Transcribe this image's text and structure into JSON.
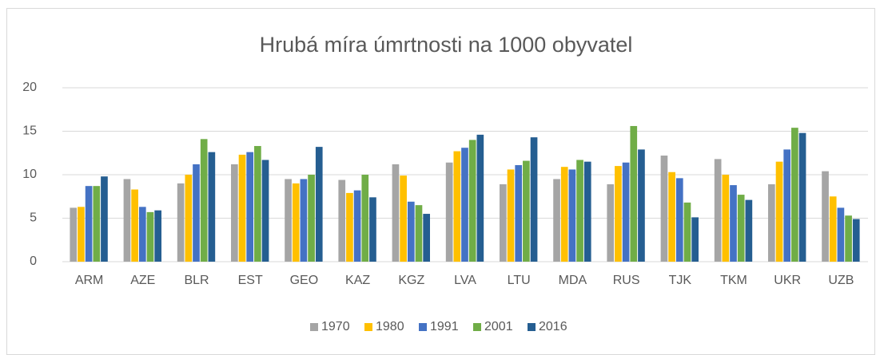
{
  "chart_data": {
    "type": "bar",
    "title": "Hrubá míra úmrtnosti na 1000 obyvatel",
    "categories": [
      "ARM",
      "AZE",
      "BLR",
      "EST",
      "GEO",
      "KAZ",
      "KGZ",
      "LVA",
      "LTU",
      "MDA",
      "RUS",
      "TJK",
      "TKM",
      "UKR",
      "UZB"
    ],
    "series": [
      {
        "name": "1970",
        "color": "#a5a5a5",
        "values": [
          6.2,
          9.5,
          9.0,
          11.2,
          9.5,
          9.4,
          11.2,
          11.4,
          8.9,
          9.5,
          8.9,
          12.2,
          11.8,
          8.9,
          10.4
        ]
      },
      {
        "name": "1980",
        "color": "#ffc000",
        "values": [
          6.3,
          8.3,
          10.0,
          12.3,
          9.0,
          7.9,
          9.9,
          12.7,
          10.6,
          10.9,
          11.0,
          10.3,
          10.0,
          11.5,
          7.5
        ]
      },
      {
        "name": "1991",
        "color": "#4472c4",
        "values": [
          8.7,
          6.3,
          11.2,
          12.6,
          9.5,
          8.2,
          6.9,
          13.1,
          11.1,
          10.6,
          11.4,
          9.6,
          8.8,
          12.9,
          6.2
        ]
      },
      {
        "name": "2001",
        "color": "#70ad47",
        "values": [
          8.7,
          5.7,
          14.1,
          13.3,
          10.0,
          10.0,
          6.5,
          14.0,
          11.6,
          11.7,
          15.6,
          6.8,
          7.7,
          15.4,
          5.3
        ]
      },
      {
        "name": "2016",
        "color": "#255e91",
        "values": [
          9.8,
          5.9,
          12.6,
          11.7,
          13.2,
          7.4,
          5.5,
          14.6,
          14.3,
          11.5,
          12.9,
          5.1,
          7.1,
          14.8,
          4.9
        ]
      }
    ],
    "ylim": [
      0,
      20
    ],
    "yticks": [
      0,
      5,
      10,
      15,
      20
    ],
    "grid": true,
    "legend": "bottom"
  }
}
